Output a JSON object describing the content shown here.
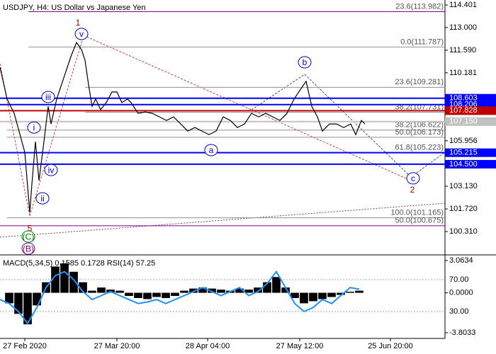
{
  "chart_data": [
    {
      "type": "line",
      "title": "USDJPY, H4:  US Dollar vs Japanese Yen",
      "color": "#000000",
      "x": [
        0,
        10,
        20,
        35,
        42,
        45,
        50,
        55,
        62,
        68,
        72,
        80,
        90,
        100,
        108,
        115,
        120,
        125,
        130,
        135,
        142,
        150,
        158,
        165,
        172,
        180,
        185,
        195,
        205,
        215,
        225,
        235,
        245,
        255,
        265,
        275,
        285,
        295,
        305,
        315,
        325,
        335,
        345,
        355,
        365,
        375,
        385,
        395,
        405,
        415,
        425,
        432,
        440,
        448,
        455,
        465,
        475,
        485,
        495,
        502,
        510,
        515
      ],
      "values": [
        110.53,
        108.55,
        107.66,
        105.24,
        101.5,
        103.26,
        105.9,
        103.48,
        105.9,
        108.1,
        107.0,
        108.55,
        109.87,
        111.19,
        112.07,
        111.63,
        110.97,
        109.43,
        108.1,
        108.55,
        107.89,
        108.33,
        108.99,
        108.99,
        108.33,
        108.55,
        108.33,
        107.66,
        107.75,
        107.66,
        107.44,
        107.22,
        107.44,
        107.0,
        106.56,
        106.78,
        106.56,
        106.34,
        106.56,
        107.44,
        107.22,
        106.78,
        107.0,
        107.66,
        107.44,
        107.66,
        107.44,
        107.22,
        107.66,
        108.55,
        109.21,
        109.65,
        108.1,
        107.44,
        106.56,
        107.0,
        107.0,
        106.78,
        107.0,
        106.34,
        107.22,
        107.0
      ],
      "xlim": [
        0,
        628
      ],
      "ylim": [
        98.95,
        114.71
      ],
      "yticks": [
        114.401,
        {
          "value": 113,
          "label": "113.000"
        },
        {
          "value": 111.59,
          "label": "111.590"
        },
        110.181,
        105.956,
        {
          "value": 103.13,
          "label": "103.130"
        },
        {
          "value": 101.72,
          "label": "101.720"
        },
        {
          "value": 100.31,
          "label": "100.310"
        }
      ],
      "levels": [
        {
          "value": 108.603,
          "label": "108.603",
          "color": "#0000ff"
        },
        {
          "value": 108.206,
          "label": "108.206",
          "color": "#0000ff"
        },
        {
          "value": 107.828,
          "label": "107.828",
          "color": "#c00000"
        },
        {
          "value": 107.15,
          "label": "107.150",
          "color": "#c0c0c0"
        },
        {
          "value": 105.215,
          "label": "105.215",
          "color": "#0000ff"
        },
        {
          "value": 104.5,
          "label": "104.500",
          "color": "#0000ff"
        }
      ],
      "fibs": [
        {
          "value": 113.982,
          "label": "23.6(113.982)",
          "x": 40,
          "color": "#800080"
        },
        {
          "value": 111.787,
          "label": "0.0(111.787)",
          "x": 40,
          "color": "#909090"
        },
        {
          "value": 109.281,
          "label": "23.6(109.281)",
          "x": 120,
          "color": "#909090"
        },
        {
          "value": 107.731,
          "label": "38.2(107.731)",
          "x": 120,
          "color": "#909090"
        },
        {
          "value": 106.622,
          "label": "38.2(106.622)",
          "x": 10,
          "color": "#909090"
        },
        {
          "value": 106.173,
          "label": "50.0(106.173)",
          "x": 10,
          "color": "#909090"
        },
        {
          "value": 105.223,
          "label": "61.8(105.223)",
          "x": 10,
          "color": "#909090"
        },
        {
          "value": 101.165,
          "label": "100.0(101.165)",
          "x": 10,
          "color": "#909090"
        },
        {
          "value": 100.675,
          "label": "50.0(100.675)",
          "x": 0,
          "color": "#800080"
        }
      ],
      "annotations": [
        {
          "text": "1",
          "x": 110,
          "y": 113.3,
          "circle": false,
          "color": "#b00000"
        },
        {
          "text": "v",
          "x": 115,
          "y": 112.6,
          "circle": true,
          "color": "#0000cc"
        },
        {
          "text": "iii",
          "x": 68,
          "y": 108.68,
          "circle": true,
          "color": "#0000cc"
        },
        {
          "text": "i",
          "x": 48,
          "y": 106.78,
          "circle": true,
          "color": "#0000cc"
        },
        {
          "text": "iv",
          "x": 72,
          "y": 104.14,
          "circle": true,
          "color": "#0000cc"
        },
        {
          "text": "ii",
          "x": 60,
          "y": 102.38,
          "circle": true,
          "color": "#0000cc"
        },
        {
          "text": "5",
          "x": 42,
          "y": 100.53,
          "circle": false,
          "color": "#b00000"
        },
        {
          "text": "(C)",
          "x": 40,
          "y": 100.0,
          "circle": true,
          "color": "#008000"
        },
        {
          "text": "(B)",
          "x": 40,
          "y": 99.25,
          "circle": true,
          "color": "#800080"
        },
        {
          "text": "a",
          "x": 298,
          "y": 105.38,
          "circle": true,
          "color": "#0000cc"
        },
        {
          "text": "b",
          "x": 430,
          "y": 110.84,
          "circle": true,
          "color": "#0000cc"
        },
        {
          "text": "c",
          "x": 583,
          "y": 103.62,
          "circle": true,
          "color": "#0000cc"
        },
        {
          "text": "2",
          "x": 582,
          "y": 102.91,
          "circle": false,
          "color": "#b00000"
        }
      ]
    },
    {
      "type": "bar",
      "title": "MACD(5,34,5) 0.1585 0.1728 RSI(14) 57.25",
      "x": [
        0,
        13,
        26,
        39,
        52,
        65,
        78,
        91,
        104,
        117,
        130,
        143,
        156,
        169,
        182,
        195,
        208,
        221,
        234,
        247,
        260,
        273,
        286,
        299,
        312,
        325,
        338,
        351,
        364,
        377,
        390,
        403,
        416,
        429,
        442,
        455,
        468,
        481,
        494,
        507
      ],
      "series": [
        {
          "type": "bar",
          "color": "#000000",
          "values": [
            0,
            -1,
            -2,
            -3,
            -1.2,
            1,
            2.5,
            2.8,
            2,
            1,
            0.2,
            0.5,
            0.3,
            0.2,
            -0.3,
            -0.5,
            -0.6,
            -0.4,
            -0.5,
            -0.3,
            0.2,
            0.4,
            0.5,
            0.4,
            0.3,
            0.2,
            0.4,
            0.3,
            0.5,
            1.0,
            1.5,
            0.5,
            -0.5,
            -1.0,
            -0.8,
            -0.6,
            -0.4,
            -0.2,
            0.1,
            0.2
          ]
        },
        {
          "type": "line",
          "color": "#1e90ff",
          "axis": "y2",
          "values": [
            45,
            40,
            30,
            15,
            35,
            60,
            75,
            80,
            70,
            55,
            45,
            50,
            55,
            50,
            45,
            40,
            42,
            45,
            40,
            45,
            50,
            55,
            60,
            55,
            50,
            55,
            60,
            50,
            55,
            65,
            80,
            60,
            40,
            30,
            35,
            45,
            40,
            50,
            60,
            58
          ]
        }
      ],
      "xlim": [
        0,
        628
      ],
      "ylim": [
        -4.34,
        3.47
      ],
      "yticks": [
        3.0634,
        {
          "value": 0,
          "label": "0.0000"
        },
        -3.8033
      ],
      "y2lim": [
        -3.8,
        99.3
      ],
      "y2ticks": [
        {
          "value": 70,
          "label": "70.00"
        },
        {
          "value": 30,
          "label": "30.00"
        }
      ],
      "xticks": [
        {
          "value": 35,
          "label": "27 Feb 2020"
        },
        {
          "value": 165,
          "label": "27 Mar 20:00"
        },
        {
          "value": 293,
          "label": "28 Apr 04:00"
        },
        {
          "value": 423,
          "label": "27 May 12:00"
        },
        {
          "value": 551,
          "label": "25 Jun 20:00"
        }
      ]
    }
  ]
}
